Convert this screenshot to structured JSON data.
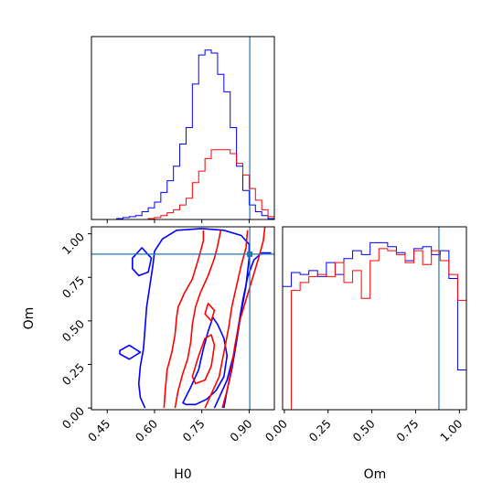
{
  "colors": {
    "sample_a": "#0000ff",
    "sample_b": "#ff0000",
    "truth": "#1f77b4",
    "axes": "#000000"
  },
  "chart_data": {
    "type": "corner",
    "parameters": [
      "H0",
      "Om"
    ],
    "truth": {
      "H0": 0.902,
      "Om": 0.883
    },
    "panels": [
      {
        "id": "hist-h0",
        "type": "histogram",
        "param": "H0",
        "xlim": [
          0.4,
          0.98
        ],
        "bin_edges": [
          0.4,
          0.42,
          0.44,
          0.46,
          0.48,
          0.5,
          0.52,
          0.54,
          0.56,
          0.58,
          0.6,
          0.62,
          0.64,
          0.66,
          0.68,
          0.7,
          0.72,
          0.74,
          0.76,
          0.78,
          0.8,
          0.82,
          0.84,
          0.86,
          0.88,
          0.9,
          0.92,
          0.94,
          0.96,
          0.98
        ],
        "series": [
          {
            "color": "blue",
            "counts": [
              0,
              0,
              0,
              0,
              1,
              2,
              3,
              4,
              8,
              12,
              18,
              28,
              40,
              55,
              78,
              95,
              140,
              170,
              175,
              172,
              150,
              132,
              95,
              55,
              30,
              15,
              8,
              4,
              1
            ]
          },
          {
            "color": "red",
            "counts": [
              0,
              0,
              0,
              0,
              0,
              0,
              0,
              0,
              0,
              1,
              2,
              4,
              7,
              10,
              15,
              22,
              38,
              50,
              63,
              72,
              72,
              72,
              68,
              58,
              46,
              32,
              20,
              10,
              3
            ]
          }
        ]
      },
      {
        "id": "contour-h0-om",
        "type": "contour",
        "x_param": "H0",
        "y_param": "Om",
        "xlim": [
          0.4,
          0.98
        ],
        "ylim": [
          -0.01,
          1.04
        ],
        "xticks": [
          "0.45",
          "0.60",
          "0.75",
          "0.90"
        ],
        "xtick_values": [
          0.45,
          0.6,
          0.75,
          0.9
        ],
        "yticks": [
          "0.00",
          "0.25",
          "0.50",
          "0.75",
          "1.00"
        ],
        "ytick_values": [
          0.0,
          0.25,
          0.5,
          0.75,
          1.0
        ],
        "series": [
          {
            "color": "blue",
            "levels": [
              {
                "path": [
                  [
                    0.57,
                    0.0
                  ],
                  [
                    0.555,
                    0.06
                  ],
                  [
                    0.55,
                    0.14
                  ],
                  [
                    0.555,
                    0.24
                  ],
                  [
                    0.565,
                    0.34
                  ],
                  [
                    0.57,
                    0.46
                  ],
                  [
                    0.575,
                    0.58
                  ],
                  [
                    0.585,
                    0.7
                  ],
                  [
                    0.595,
                    0.82
                  ],
                  [
                    0.6,
                    0.9
                  ],
                  [
                    0.625,
                    0.97
                  ],
                  [
                    0.67,
                    1.02
                  ],
                  [
                    0.75,
                    1.03
                  ],
                  [
                    0.82,
                    1.02
                  ],
                  [
                    0.875,
                    0.99
                  ],
                  [
                    0.9,
                    0.94
                  ],
                  [
                    0.9,
                    0.86
                  ],
                  [
                    0.89,
                    0.7
                  ],
                  [
                    0.875,
                    0.55
                  ],
                  [
                    0.86,
                    0.38
                  ],
                  [
                    0.845,
                    0.22
                  ],
                  [
                    0.83,
                    0.1
                  ],
                  [
                    0.82,
                    0.0
                  ]
                ],
                "closed": false
              },
              {
                "path": [
                  [
                    0.79,
                    0.0
                  ],
                  [
                    0.805,
                    0.06
                  ],
                  [
                    0.83,
                    0.16
                  ],
                  [
                    0.85,
                    0.3
                  ],
                  [
                    0.865,
                    0.46
                  ],
                  [
                    0.88,
                    0.62
                  ],
                  [
                    0.895,
                    0.75
                  ],
                  [
                    0.915,
                    0.85
                  ],
                  [
                    0.94,
                    0.89
                  ],
                  [
                    0.97,
                    0.89
                  ]
                ],
                "closed": false
              },
              {
                "path": [
                  [
                    0.53,
                    0.86
                  ],
                  [
                    0.56,
                    0.92
                  ],
                  [
                    0.59,
                    0.86
                  ],
                  [
                    0.58,
                    0.78
                  ],
                  [
                    0.55,
                    0.76
                  ],
                  [
                    0.53,
                    0.8
                  ]
                ],
                "closed": true
              },
              {
                "path": [
                  [
                    0.49,
                    0.33
                  ],
                  [
                    0.52,
                    0.36
                  ],
                  [
                    0.555,
                    0.32
                  ],
                  [
                    0.52,
                    0.28
                  ],
                  [
                    0.49,
                    0.31
                  ]
                ],
                "closed": true
              },
              {
                "path": [
                  [
                    0.69,
                    0.03
                  ],
                  [
                    0.715,
                    0.12
                  ],
                  [
                    0.74,
                    0.22
                  ],
                  [
                    0.755,
                    0.34
                  ],
                  [
                    0.77,
                    0.44
                  ],
                  [
                    0.785,
                    0.52
                  ],
                  [
                    0.8,
                    0.48
                  ],
                  [
                    0.82,
                    0.4
                  ],
                  [
                    0.83,
                    0.3
                  ],
                  [
                    0.82,
                    0.18
                  ],
                  [
                    0.795,
                    0.1
                  ],
                  [
                    0.765,
                    0.05
                  ],
                  [
                    0.73,
                    0.02
                  ],
                  [
                    0.7,
                    0.02
                  ]
                ],
                "closed": true
              }
            ]
          },
          {
            "color": "red",
            "levels": [
              {
                "path": [
                  [
                    0.63,
                    0.0
                  ],
                  [
                    0.635,
                    0.12
                  ],
                  [
                    0.64,
                    0.22
                  ],
                  [
                    0.655,
                    0.32
                  ],
                  [
                    0.665,
                    0.42
                  ],
                  [
                    0.67,
                    0.52
                  ],
                  [
                    0.675,
                    0.58
                  ],
                  [
                    0.695,
                    0.66
                  ],
                  [
                    0.72,
                    0.74
                  ],
                  [
                    0.74,
                    0.86
                  ],
                  [
                    0.755,
                    0.96
                  ],
                  [
                    0.755,
                    1.02
                  ]
                ],
                "closed": false
              },
              {
                "path": [
                  [
                    0.665,
                    0.0
                  ],
                  [
                    0.675,
                    0.1
                  ],
                  [
                    0.69,
                    0.2
                  ],
                  [
                    0.705,
                    0.28
                  ],
                  [
                    0.715,
                    0.38
                  ],
                  [
                    0.72,
                    0.48
                  ],
                  [
                    0.73,
                    0.58
                  ],
                  [
                    0.745,
                    0.66
                  ],
                  [
                    0.77,
                    0.76
                  ],
                  [
                    0.79,
                    0.86
                  ],
                  [
                    0.8,
                    0.93
                  ],
                  [
                    0.81,
                    1.02
                  ]
                ],
                "closed": false
              },
              {
                "path": [
                  [
                    0.815,
                    0.0
                  ],
                  [
                    0.83,
                    0.1
                  ],
                  [
                    0.845,
                    0.24
                  ],
                  [
                    0.855,
                    0.36
                  ],
                  [
                    0.87,
                    0.5
                  ],
                  [
                    0.89,
                    0.62
                  ],
                  [
                    0.91,
                    0.74
                  ],
                  [
                    0.93,
                    0.86
                  ],
                  [
                    0.945,
                    0.96
                  ],
                  [
                    0.95,
                    1.04
                  ]
                ],
                "closed": false
              },
              {
                "path": [
                  [
                    0.76,
                    0.0
                  ],
                  [
                    0.78,
                    0.08
                  ],
                  [
                    0.805,
                    0.18
                  ],
                  [
                    0.82,
                    0.32
                  ],
                  [
                    0.835,
                    0.46
                  ],
                  [
                    0.845,
                    0.58
                  ],
                  [
                    0.86,
                    0.7
                  ],
                  [
                    0.875,
                    0.82
                  ],
                  [
                    0.89,
                    0.92
                  ],
                  [
                    0.895,
                    1.02
                  ]
                ],
                "closed": false
              },
              {
                "path": [
                  [
                    0.72,
                    0.18
                  ],
                  [
                    0.74,
                    0.3
                  ],
                  [
                    0.76,
                    0.4
                  ],
                  [
                    0.78,
                    0.42
                  ],
                  [
                    0.79,
                    0.36
                  ],
                  [
                    0.78,
                    0.24
                  ],
                  [
                    0.76,
                    0.16
                  ],
                  [
                    0.73,
                    0.14
                  ]
                ],
                "closed": true
              },
              {
                "path": [
                  [
                    0.76,
                    0.54
                  ],
                  [
                    0.78,
                    0.5
                  ],
                  [
                    0.79,
                    0.56
                  ],
                  [
                    0.77,
                    0.6
                  ]
                ],
                "closed": true
              }
            ]
          }
        ]
      },
      {
        "id": "hist-om",
        "type": "histogram",
        "param": "Om",
        "xlim": [
          -0.01,
          1.04
        ],
        "xticks": [
          "0.00",
          "0.25",
          "0.50",
          "0.75",
          "1.00"
        ],
        "xtick_values": [
          0.0,
          0.25,
          0.5,
          0.75,
          1.0
        ],
        "bin_edges": [
          -0.01,
          0.04,
          0.09,
          0.14,
          0.19,
          0.24,
          0.29,
          0.34,
          0.39,
          0.44,
          0.49,
          0.54,
          0.59,
          0.64,
          0.69,
          0.74,
          0.79,
          0.84,
          0.89,
          0.94,
          0.99,
          1.04
        ],
        "series": [
          {
            "color": "blue",
            "counts": [
              0.62,
              0.69,
              0.68,
              0.7,
              0.67,
              0.74,
              0.68,
              0.76,
              0.8,
              0.78,
              0.84,
              0.84,
              0.82,
              0.79,
              0.75,
              0.81,
              0.82,
              0.78,
              0.8,
              0.66,
              0.2
            ]
          },
          {
            "color": "red",
            "counts": [
              0.0,
              0.6,
              0.64,
              0.67,
              0.68,
              0.67,
              0.74,
              0.64,
              0.7,
              0.56,
              0.75,
              0.81,
              0.8,
              0.78,
              0.74,
              0.8,
              0.73,
              0.8,
              0.75,
              0.68,
              0.55
            ]
          }
        ]
      }
    ],
    "xlabels": {
      "H0": "H0",
      "Om": "Om"
    },
    "ylabels": {
      "Om": "Om"
    }
  }
}
